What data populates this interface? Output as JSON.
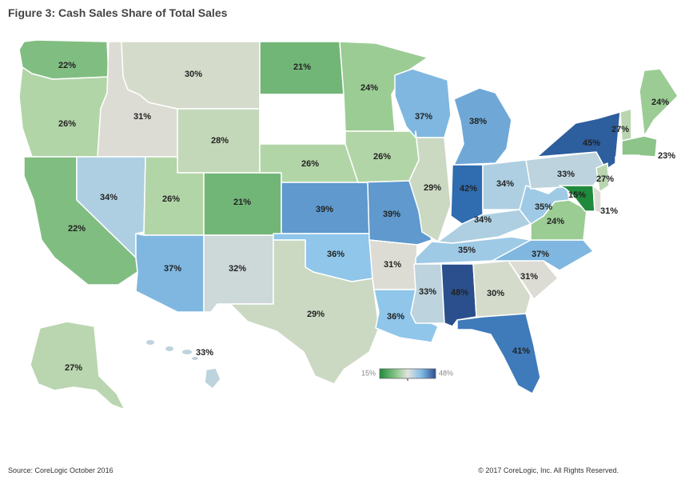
{
  "title": "Figure 3: Cash Sales Share of Total Sales",
  "source": "Source: CoreLogic October 2016",
  "copyright": "© 2017 CoreLogic, Inc. All Rights Reserved.",
  "legend": {
    "min_label": "15%",
    "max_label": "48%",
    "min": 15,
    "max": 48
  },
  "colors": {
    "low": "#1f8a3c",
    "mid_low": "#a9d39e",
    "mid": "#dcdcd4",
    "mid_high": "#8fc6ea",
    "high": "#2f6cb0",
    "max": "#2a4f8c"
  },
  "chart_data": {
    "type": "choropleth",
    "title": "Figure 3: Cash Sales Share of Total Sales",
    "unit": "%",
    "states": [
      {
        "id": "WA",
        "label": "22%",
        "value": 22
      },
      {
        "id": "OR",
        "label": "26%",
        "value": 26
      },
      {
        "id": "CA",
        "label": "22%",
        "value": 22
      },
      {
        "id": "ID",
        "label": "31%",
        "value": 31
      },
      {
        "id": "NV",
        "label": "34%",
        "value": 34
      },
      {
        "id": "MT",
        "label": "30%",
        "value": 30
      },
      {
        "id": "WY",
        "label": "28%",
        "value": 28
      },
      {
        "id": "UT",
        "label": "26%",
        "value": 26
      },
      {
        "id": "AZ",
        "label": "37%",
        "value": 37
      },
      {
        "id": "CO",
        "label": "21%",
        "value": 21
      },
      {
        "id": "NM",
        "label": "32%",
        "value": 32
      },
      {
        "id": "ND",
        "label": "21%",
        "value": 21
      },
      {
        "id": "SD",
        "label": "",
        "value": null
      },
      {
        "id": "NE",
        "label": "26%",
        "value": 26
      },
      {
        "id": "KS",
        "label": "39%",
        "value": 39
      },
      {
        "id": "OK",
        "label": "36%",
        "value": 36
      },
      {
        "id": "TX",
        "label": "29%",
        "value": 29
      },
      {
        "id": "MN",
        "label": "24%",
        "value": 24
      },
      {
        "id": "IA",
        "label": "26%",
        "value": 26
      },
      {
        "id": "MO",
        "label": "39%",
        "value": 39
      },
      {
        "id": "AR",
        "label": "31%",
        "value": 31
      },
      {
        "id": "LA",
        "label": "36%",
        "value": 36
      },
      {
        "id": "WI",
        "label": "37%",
        "value": 37
      },
      {
        "id": "IL",
        "label": "29%",
        "value": 29
      },
      {
        "id": "MI",
        "label": "38%",
        "value": 38
      },
      {
        "id": "IN",
        "label": "42%",
        "value": 42
      },
      {
        "id": "OH",
        "label": "34%",
        "value": 34
      },
      {
        "id": "KY",
        "label": "34%",
        "value": 34
      },
      {
        "id": "TN",
        "label": "35%",
        "value": 35
      },
      {
        "id": "MS",
        "label": "33%",
        "value": 33
      },
      {
        "id": "AL",
        "label": "48%",
        "value": 48
      },
      {
        "id": "GA",
        "label": "30%",
        "value": 30
      },
      {
        "id": "FL",
        "label": "41%",
        "value": 41
      },
      {
        "id": "SC",
        "label": "31%",
        "value": 31
      },
      {
        "id": "NC",
        "label": "37%",
        "value": 37
      },
      {
        "id": "VA",
        "label": "24%",
        "value": 24
      },
      {
        "id": "WV",
        "label": "35%",
        "value": 35
      },
      {
        "id": "PA",
        "label": "33%",
        "value": 33
      },
      {
        "id": "NY",
        "label": "45%",
        "value": 45
      },
      {
        "id": "NJ",
        "label": "27%",
        "value": 27
      },
      {
        "id": "MD",
        "label": "15%",
        "value": 15
      },
      {
        "id": "DE",
        "label": "31%",
        "value": 31
      },
      {
        "id": "VT",
        "label": "27%",
        "value": 27
      },
      {
        "id": "NH",
        "label": "",
        "value": null
      },
      {
        "id": "ME",
        "label": "24%",
        "value": 24
      },
      {
        "id": "MA",
        "label": "23%",
        "value": 23
      },
      {
        "id": "CT",
        "label": "",
        "value": null
      },
      {
        "id": "RI",
        "label": "",
        "value": null
      },
      {
        "id": "AK",
        "label": "27%",
        "value": 27
      },
      {
        "id": "HI",
        "label": "33%",
        "value": 33
      }
    ]
  }
}
